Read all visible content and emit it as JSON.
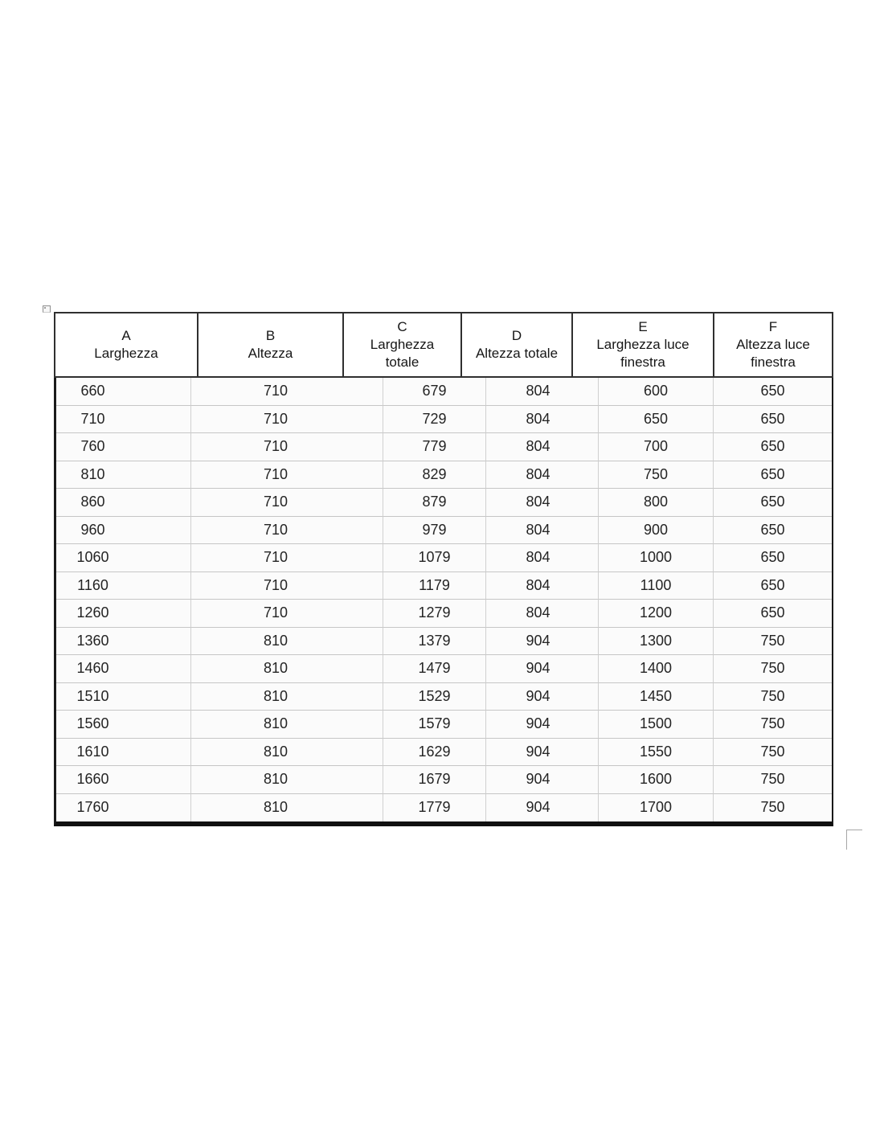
{
  "table": {
    "columns": [
      {
        "key": "A",
        "label": "A\nLarghezza"
      },
      {
        "key": "B",
        "label": "B\nAltezza"
      },
      {
        "key": "C",
        "label": "C\nLarghezza\ntotale"
      },
      {
        "key": "D",
        "label": "D\nAltezza totale"
      },
      {
        "key": "E",
        "label": "E\nLarghezza luce\nfinestra"
      },
      {
        "key": "F",
        "label": "F\nAltezza luce\nfinestra"
      }
    ],
    "rows": [
      [
        "660",
        "710",
        "679",
        "804",
        "600",
        "650"
      ],
      [
        "710",
        "710",
        "729",
        "804",
        "650",
        "650"
      ],
      [
        "760",
        "710",
        "779",
        "804",
        "700",
        "650"
      ],
      [
        "810",
        "710",
        "829",
        "804",
        "750",
        "650"
      ],
      [
        "860",
        "710",
        "879",
        "804",
        "800",
        "650"
      ],
      [
        "960",
        "710",
        "979",
        "804",
        "900",
        "650"
      ],
      [
        "1060",
        "710",
        "1079",
        "804",
        "1000",
        "650"
      ],
      [
        "1160",
        "710",
        "1179",
        "804",
        "1100",
        "650"
      ],
      [
        "1260",
        "710",
        "1279",
        "804",
        "1200",
        "650"
      ],
      [
        "1360",
        "810",
        "1379",
        "904",
        "1300",
        "750"
      ],
      [
        "1460",
        "810",
        "1479",
        "904",
        "1400",
        "750"
      ],
      [
        "1510",
        "810",
        "1529",
        "904",
        "1450",
        "750"
      ],
      [
        "1560",
        "810",
        "1579",
        "904",
        "1500",
        "750"
      ],
      [
        "1610",
        "810",
        "1629",
        "904",
        "1550",
        "750"
      ],
      [
        "1660",
        "810",
        "1679",
        "904",
        "1600",
        "750"
      ],
      [
        "1760",
        "810",
        "1779",
        "904",
        "1700",
        "750"
      ]
    ]
  },
  "chart_data": {
    "type": "table",
    "columns": [
      "A Larghezza",
      "B Altezza",
      "C Larghezza totale",
      "D Altezza totale",
      "E Larghezza luce finestra",
      "F Altezza luce finestra"
    ],
    "rows": [
      [
        660,
        710,
        679,
        804,
        600,
        650
      ],
      [
        710,
        710,
        729,
        804,
        650,
        650
      ],
      [
        760,
        710,
        779,
        804,
        700,
        650
      ],
      [
        810,
        710,
        829,
        804,
        750,
        650
      ],
      [
        860,
        710,
        879,
        804,
        800,
        650
      ],
      [
        960,
        710,
        979,
        804,
        900,
        650
      ],
      [
        1060,
        710,
        1079,
        804,
        1000,
        650
      ],
      [
        1160,
        710,
        1179,
        804,
        1100,
        650
      ],
      [
        1260,
        710,
        1279,
        804,
        1200,
        650
      ],
      [
        1360,
        810,
        1379,
        904,
        1300,
        750
      ],
      [
        1460,
        810,
        1479,
        904,
        1400,
        750
      ],
      [
        1510,
        810,
        1529,
        904,
        1450,
        750
      ],
      [
        1560,
        810,
        1579,
        904,
        1500,
        750
      ],
      [
        1610,
        810,
        1629,
        904,
        1550,
        750
      ],
      [
        1660,
        810,
        1679,
        904,
        1600,
        750
      ],
      [
        1760,
        810,
        1779,
        904,
        1700,
        750
      ]
    ]
  },
  "colors": {
    "header_border": "#2f2f2f",
    "outer_border": "#1a1a1a",
    "gridline": "#c9c9c9",
    "text": "#242424",
    "background": "#ffffff"
  }
}
